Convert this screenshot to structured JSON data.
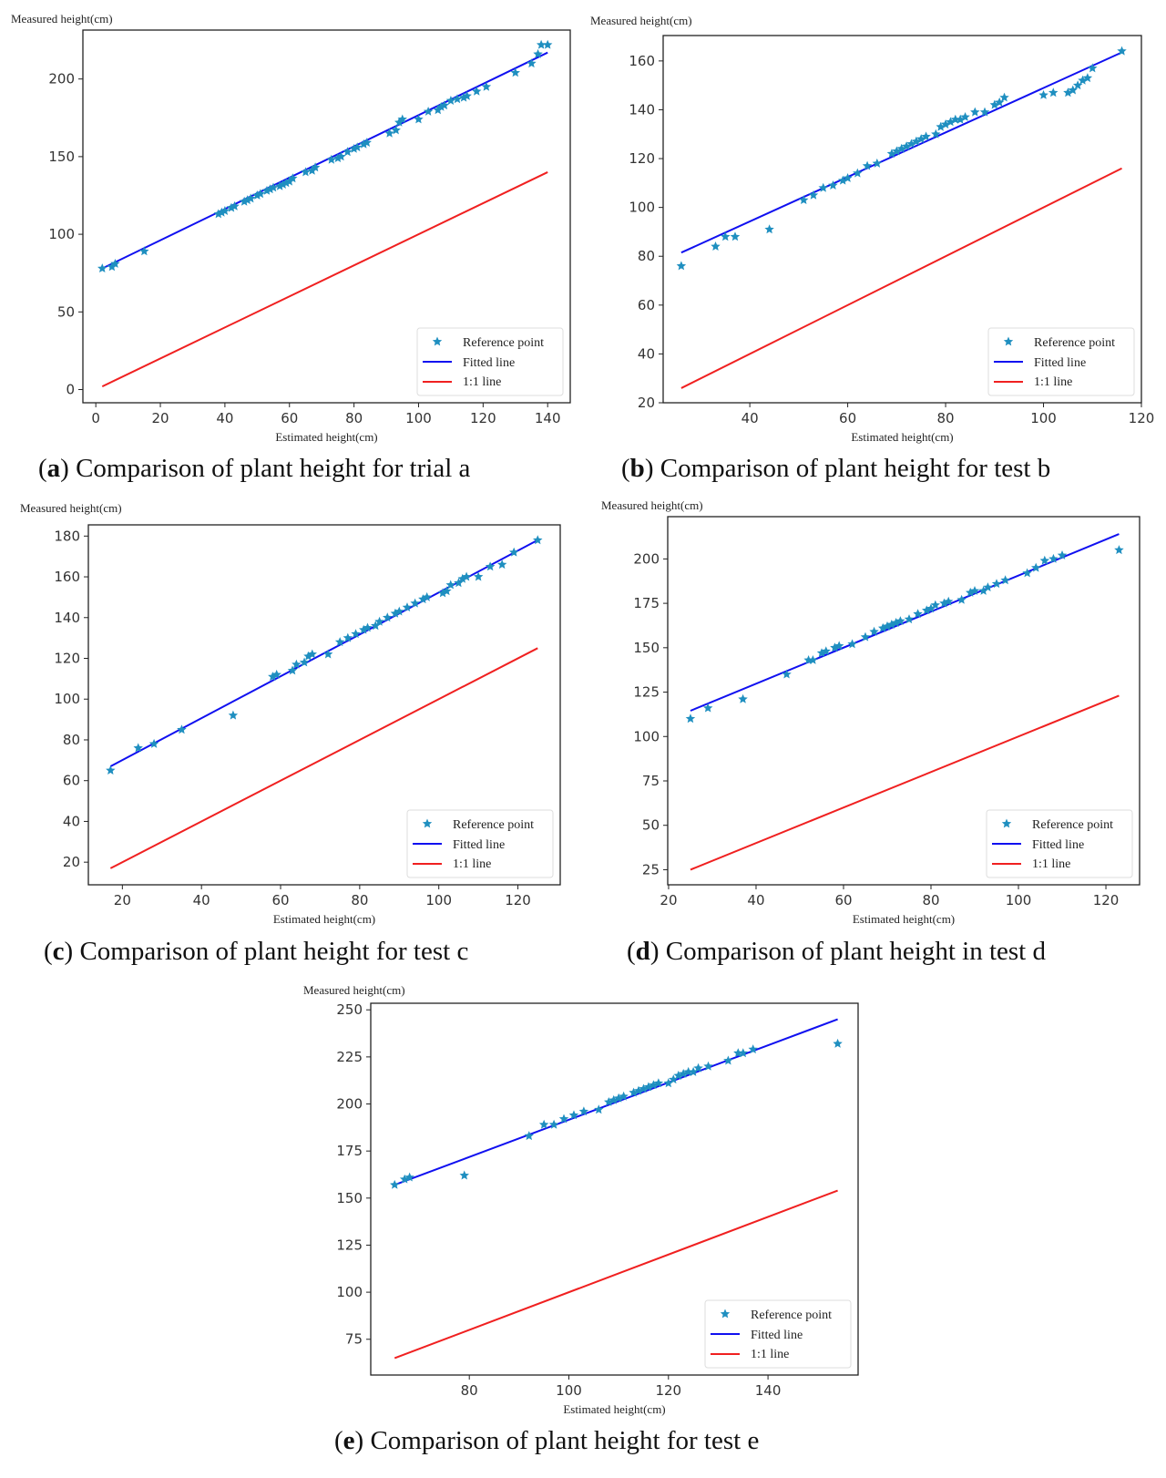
{
  "legend": {
    "points": "Reference point",
    "fitted": "Fitted line",
    "oneone": "1:1 line"
  },
  "colors": {
    "points": "#1f8fc0",
    "fitted": "#1010f0",
    "oneone": "#f02020",
    "axis": "#222222"
  },
  "chart_data": [
    {
      "id": "a",
      "type": "scatter",
      "letter": "a",
      "caption": " Comparison of plant height for trial a",
      "xlabel": "Estimated height(cm)",
      "ylabel": "Measured height(cm)",
      "xlim": [
        -4,
        147
      ],
      "ylim": [
        -8.5,
        231.5
      ],
      "xticks": [
        0,
        20,
        40,
        60,
        80,
        100,
        120,
        140
      ],
      "yticks": [
        0,
        50,
        100,
        150,
        200
      ],
      "fitted": [
        [
          2,
          78
        ],
        [
          140,
          217
        ]
      ],
      "oneone": [
        [
          2,
          2
        ],
        [
          140,
          140
        ]
      ],
      "legend_position": "bottom-right",
      "points": [
        [
          2,
          78
        ],
        [
          5,
          79
        ],
        [
          6,
          81
        ],
        [
          15,
          89
        ],
        [
          38,
          113
        ],
        [
          39,
          114
        ],
        [
          40,
          115
        ],
        [
          42,
          117
        ],
        [
          43,
          118
        ],
        [
          46,
          121
        ],
        [
          47,
          122
        ],
        [
          48,
          123
        ],
        [
          50,
          125
        ],
        [
          51,
          126
        ],
        [
          53,
          128
        ],
        [
          54,
          129
        ],
        [
          55,
          130
        ],
        [
          57,
          131
        ],
        [
          58,
          132
        ],
        [
          59,
          133
        ],
        [
          60,
          134
        ],
        [
          61,
          136
        ],
        [
          65,
          140
        ],
        [
          67,
          141
        ],
        [
          68,
          143
        ],
        [
          73,
          148
        ],
        [
          75,
          149
        ],
        [
          76,
          150
        ],
        [
          78,
          153
        ],
        [
          80,
          155
        ],
        [
          81,
          156
        ],
        [
          83,
          158
        ],
        [
          84,
          159
        ],
        [
          91,
          165
        ],
        [
          93,
          167
        ],
        [
          94,
          172
        ],
        [
          95,
          174
        ],
        [
          100,
          174
        ],
        [
          103,
          179
        ],
        [
          106,
          180
        ],
        [
          107,
          182
        ],
        [
          108,
          183
        ],
        [
          110,
          186
        ],
        [
          112,
          187
        ],
        [
          114,
          188
        ],
        [
          115,
          189
        ],
        [
          118,
          192
        ],
        [
          121,
          195
        ],
        [
          130,
          204
        ],
        [
          135,
          210
        ],
        [
          137,
          216
        ],
        [
          138,
          222
        ],
        [
          140,
          222
        ]
      ]
    },
    {
      "id": "b",
      "type": "scatter",
      "letter": "b",
      "caption": " Comparison of plant height for test b",
      "xlabel": "Estimated height(cm)",
      "ylabel": "Measured height(cm)",
      "xlim": [
        22.3,
        120
      ],
      "ylim": [
        20,
        170.4
      ],
      "xticks": [
        40,
        60,
        80,
        100,
        120
      ],
      "yticks": [
        20,
        40,
        60,
        80,
        100,
        120,
        140,
        160
      ],
      "fitted": [
        [
          26,
          81.5
        ],
        [
          116,
          163.5
        ]
      ],
      "oneone": [
        [
          26,
          26
        ],
        [
          116,
          116
        ]
      ],
      "legend_position": "bottom-right",
      "points": [
        [
          26,
          76
        ],
        [
          33,
          84
        ],
        [
          35,
          88
        ],
        [
          37,
          88
        ],
        [
          44,
          91
        ],
        [
          51,
          103
        ],
        [
          53,
          105
        ],
        [
          55,
          108
        ],
        [
          57,
          109
        ],
        [
          59,
          111
        ],
        [
          60,
          112
        ],
        [
          62,
          114
        ],
        [
          64,
          117
        ],
        [
          66,
          118
        ],
        [
          69,
          122
        ],
        [
          70,
          123
        ],
        [
          71,
          124
        ],
        [
          72,
          125
        ],
        [
          73,
          126
        ],
        [
          74,
          127
        ],
        [
          75,
          128
        ],
        [
          76,
          129
        ],
        [
          78,
          130
        ],
        [
          79,
          133
        ],
        [
          80,
          134
        ],
        [
          81,
          135
        ],
        [
          82,
          136
        ],
        [
          83,
          136
        ],
        [
          84,
          137
        ],
        [
          86,
          139
        ],
        [
          88,
          139
        ],
        [
          90,
          142
        ],
        [
          91,
          143
        ],
        [
          92,
          145
        ],
        [
          100,
          146
        ],
        [
          102,
          147
        ],
        [
          105,
          147
        ],
        [
          106,
          148
        ],
        [
          107,
          150
        ],
        [
          108,
          152
        ],
        [
          109,
          153
        ],
        [
          110,
          157
        ],
        [
          116,
          164
        ]
      ]
    },
    {
      "id": "c",
      "type": "scatter",
      "letter": "c",
      "caption": " Comparison of plant height for test c",
      "xlabel": "Estimated height(cm)",
      "ylabel": "Measured height(cm)",
      "xlim": [
        11.4,
        130.7
      ],
      "ylim": [
        8.9,
        185.5
      ],
      "xticks": [
        20,
        40,
        60,
        80,
        100,
        120
      ],
      "yticks": [
        20,
        40,
        60,
        80,
        100,
        120,
        140,
        160,
        180
      ],
      "fitted": [
        [
          17,
          67
        ],
        [
          125,
          178
        ]
      ],
      "oneone": [
        [
          17,
          17
        ],
        [
          125,
          125
        ]
      ],
      "legend_position": "bottom-right",
      "points": [
        [
          17,
          65
        ],
        [
          24,
          76
        ],
        [
          28,
          78
        ],
        [
          35,
          85
        ],
        [
          48,
          92
        ],
        [
          58,
          111
        ],
        [
          59,
          112
        ],
        [
          63,
          114
        ],
        [
          64,
          117
        ],
        [
          66,
          118
        ],
        [
          67,
          121
        ],
        [
          68,
          122
        ],
        [
          72,
          122
        ],
        [
          75,
          128
        ],
        [
          77,
          130
        ],
        [
          79,
          132
        ],
        [
          81,
          134
        ],
        [
          82,
          135
        ],
        [
          84,
          136
        ],
        [
          85,
          138
        ],
        [
          87,
          140
        ],
        [
          89,
          142
        ],
        [
          90,
          143
        ],
        [
          92,
          145
        ],
        [
          94,
          147
        ],
        [
          96,
          149
        ],
        [
          97,
          150
        ],
        [
          101,
          152
        ],
        [
          102,
          153
        ],
        [
          103,
          156
        ],
        [
          105,
          157
        ],
        [
          106,
          159
        ],
        [
          107,
          160
        ],
        [
          110,
          160
        ],
        [
          113,
          165
        ],
        [
          116,
          166
        ],
        [
          119,
          172
        ],
        [
          125,
          178
        ]
      ]
    },
    {
      "id": "d",
      "type": "scatter",
      "letter": "d",
      "caption": " Comparison of plant height in test d",
      "xlabel": "Estimated height(cm)",
      "ylabel": "Measured height(cm)",
      "xlim": [
        19.8,
        127.7
      ],
      "ylim": [
        16.5,
        223.8
      ],
      "xticks": [
        20,
        40,
        60,
        80,
        100,
        120
      ],
      "yticks": [
        25,
        50,
        75,
        100,
        125,
        150,
        175,
        200
      ],
      "fitted": [
        [
          25,
          114.5
        ],
        [
          123,
          214
        ]
      ],
      "oneone": [
        [
          25,
          25
        ],
        [
          123,
          123
        ]
      ],
      "legend_position": "bottom-right",
      "points": [
        [
          25,
          110
        ],
        [
          29,
          116
        ],
        [
          37,
          121
        ],
        [
          47,
          135
        ],
        [
          52,
          143
        ],
        [
          53,
          143
        ],
        [
          55,
          147
        ],
        [
          56,
          148
        ],
        [
          58,
          150
        ],
        [
          59,
          151
        ],
        [
          62,
          152
        ],
        [
          65,
          156
        ],
        [
          67,
          159
        ],
        [
          69,
          161
        ],
        [
          70,
          162
        ],
        [
          71,
          163
        ],
        [
          72,
          164
        ],
        [
          73,
          165
        ],
        [
          75,
          166
        ],
        [
          77,
          169
        ],
        [
          79,
          171
        ],
        [
          80,
          172
        ],
        [
          81,
          174
        ],
        [
          83,
          175
        ],
        [
          84,
          176
        ],
        [
          87,
          177
        ],
        [
          89,
          181
        ],
        [
          90,
          182
        ],
        [
          92,
          182
        ],
        [
          93,
          184
        ],
        [
          95,
          186
        ],
        [
          97,
          188
        ],
        [
          102,
          192
        ],
        [
          104,
          195
        ],
        [
          106,
          199
        ],
        [
          108,
          200
        ],
        [
          110,
          202
        ],
        [
          123,
          205
        ]
      ]
    },
    {
      "id": "e",
      "type": "scatter",
      "letter": "e",
      "caption": " Comparison of plant height for test e",
      "xlabel": "Estimated height(cm)",
      "ylabel": "Measured height(cm)",
      "xlim": [
        60.2,
        158.1
      ],
      "ylim": [
        56,
        253.5
      ],
      "xticks": [
        80,
        100,
        120,
        140
      ],
      "yticks": [
        75,
        100,
        125,
        150,
        175,
        200,
        225,
        250
      ],
      "fitted": [
        [
          65,
          157
        ],
        [
          154,
          245
        ]
      ],
      "oneone": [
        [
          65,
          65
        ],
        [
          154,
          154
        ]
      ],
      "legend_position": "bottom-right",
      "points": [
        [
          65,
          157
        ],
        [
          67,
          160
        ],
        [
          68,
          161
        ],
        [
          79,
          162
        ],
        [
          92,
          183
        ],
        [
          95,
          189
        ],
        [
          97,
          189
        ],
        [
          99,
          192
        ],
        [
          101,
          194
        ],
        [
          103,
          196
        ],
        [
          106,
          197
        ],
        [
          108,
          201
        ],
        [
          109,
          202
        ],
        [
          110,
          203
        ],
        [
          111,
          204
        ],
        [
          113,
          206
        ],
        [
          114,
          207
        ],
        [
          115,
          208
        ],
        [
          116,
          209
        ],
        [
          117,
          210
        ],
        [
          118,
          211
        ],
        [
          120,
          211
        ],
        [
          121,
          213
        ],
        [
          122,
          215
        ],
        [
          123,
          216
        ],
        [
          124,
          217
        ],
        [
          125,
          217
        ],
        [
          126,
          219
        ],
        [
          128,
          220
        ],
        [
          132,
          223
        ],
        [
          134,
          227
        ],
        [
          135,
          227
        ],
        [
          137,
          229
        ],
        [
          154,
          232
        ]
      ]
    }
  ]
}
